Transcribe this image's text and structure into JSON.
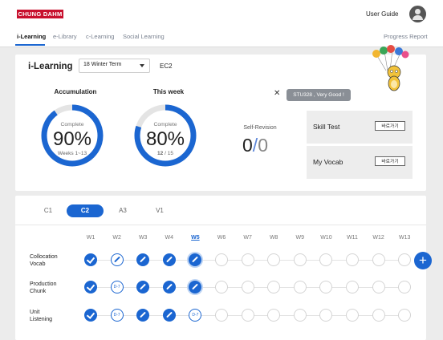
{
  "header": {
    "logo": "CHUNG DAHM",
    "user_guide": "User Guide"
  },
  "nav": {
    "items": [
      "i-Learning",
      "e-Library",
      "c-Learning",
      "Social Learning"
    ],
    "progress_report": "Progress Report"
  },
  "top": {
    "title": "i-Learning",
    "term": "18 Winter Term",
    "class_code": "EC2",
    "accumulation": {
      "label": "Accumulation",
      "complete": "Complete",
      "value": "90%",
      "sub": "Weeks 1~13",
      "percent": 90
    },
    "this_week": {
      "label": "This week",
      "complete": "Complete",
      "value": "80%",
      "sub_done": "12",
      "sub_total": " / 15",
      "percent": 80
    },
    "self_revision": {
      "label": "Self-Revision",
      "done": "0",
      "sep": "/",
      "total": "0"
    },
    "bubble": "STU328 , Very Good !",
    "skill_test": {
      "label": "Skill Test",
      "button": "바로가기"
    },
    "my_vocab": {
      "label": "My Vocab",
      "button": "바로가기"
    }
  },
  "bottom": {
    "tabs": [
      "C1",
      "C2",
      "A3",
      "V1"
    ],
    "active_tab": "C2",
    "weeks": [
      "W1",
      "W2",
      "W3",
      "W4",
      "W5",
      "W6",
      "W7",
      "W8",
      "W9",
      "W10",
      "W11",
      "W12",
      "W13"
    ],
    "current_week": "W5",
    "rows": [
      {
        "label_1": "Collocation",
        "label_2": "Vocab",
        "states": [
          "done-check",
          "pen-outline",
          "done-pen",
          "done-pen",
          "current",
          "empty",
          "empty",
          "empty",
          "empty",
          "empty",
          "empty",
          "empty",
          "empty"
        ]
      },
      {
        "label_1": "Production",
        "label_2": "Chunk",
        "states": [
          "done-check",
          "d7",
          "done-pen",
          "done-pen",
          "current",
          "empty",
          "empty",
          "empty",
          "empty",
          "empty",
          "empty",
          "empty",
          "empty"
        ]
      },
      {
        "label_1": "Unit",
        "label_2": "Listening",
        "states": [
          "done-check",
          "d7",
          "done-pen",
          "done-pen",
          "d7",
          "empty",
          "empty",
          "empty",
          "empty",
          "empty",
          "empty",
          "empty",
          "empty"
        ]
      }
    ],
    "d7_label": "D-7"
  }
}
